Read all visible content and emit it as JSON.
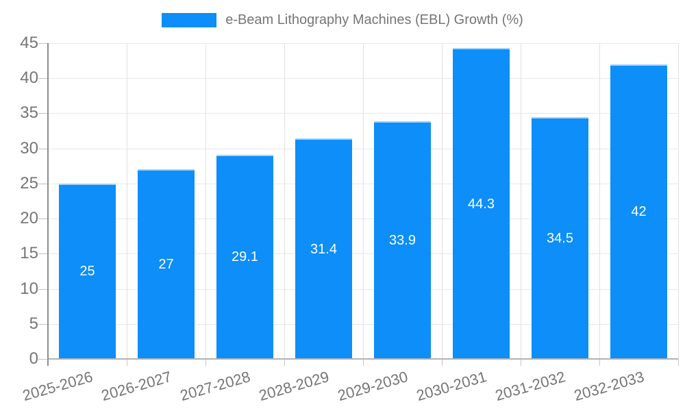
{
  "legend": {
    "label": "e-Beam Lithography Machines (EBL) Growth (%)"
  },
  "chart_data": {
    "type": "bar",
    "title": "e-Beam Lithography Machines (EBL) Growth (%)",
    "categories": [
      "2025-2026",
      "2026-2027",
      "2027-2028",
      "2028-2029",
      "2029-2030",
      "2030-2031",
      "2031-2032",
      "2032-2033"
    ],
    "values": [
      25,
      27,
      29.1,
      31.4,
      33.9,
      44.3,
      34.5,
      42
    ],
    "value_labels": [
      "25",
      "27",
      "29.1",
      "31.4",
      "33.9",
      "44.3",
      "34.5",
      "42"
    ],
    "xlabel": "",
    "ylabel": "",
    "ylim": [
      0,
      45
    ],
    "yticks": [
      0,
      5,
      10,
      15,
      20,
      25,
      30,
      35,
      40,
      45
    ],
    "grid": "horizontal and vertical light gray gridlines",
    "legend_position": "top-center",
    "value_label_position": "centered inside bar, white",
    "x_label_rotation_deg": -16,
    "colors": {
      "bar_fill": "#0d8ef8",
      "bar_border": "#9fd3fb",
      "value_text": "#ffffff",
      "axis_text": "#757575",
      "gridline": "#e7e7e7",
      "axis_line": "#8c8c8c",
      "background": "#ffffff"
    }
  }
}
